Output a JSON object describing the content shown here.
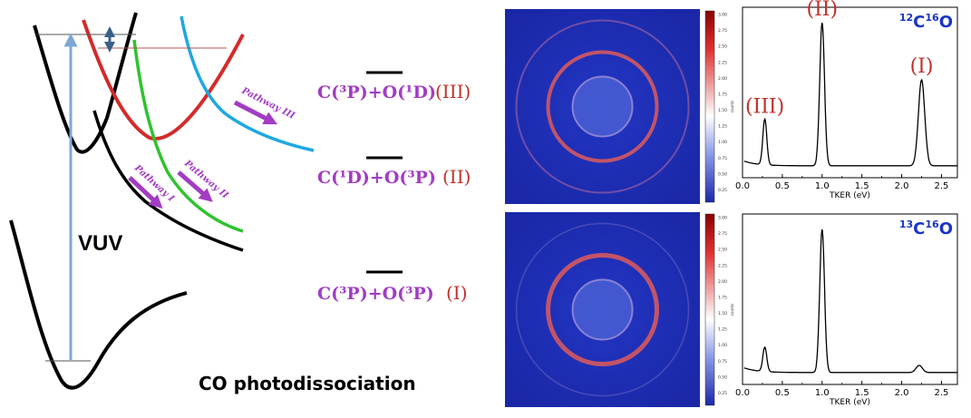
{
  "title": "CO photodissociation",
  "excitation_label": "VUV",
  "pathways": [
    {
      "label": "Pathway I"
    },
    {
      "label": "Pathway II"
    },
    {
      "label": "Pathway III"
    }
  ],
  "channels": [
    {
      "formula": "C(³P)+O(³P)",
      "numeral": "(I)"
    },
    {
      "formula": "C(¹D)+O(³P)",
      "numeral": "(II)"
    },
    {
      "formula": "C(³P)+O(¹D)",
      "numeral": "(III)"
    }
  ],
  "colors": {
    "curve_ground": "#000000",
    "curve_red": "#d42a2a",
    "curve_green": "#2fc22f",
    "curve_cyan": "#1fa8e0",
    "pathway_label": "#a23cc4",
    "channel_formula": "#a23cc4",
    "channel_numeral": "#c0302a",
    "vuv_arrow": "#7fa7d6",
    "double_arrow": "#3a5f8a",
    "isotope_label": "#1a35c8",
    "image_bg": "#1c2bb4",
    "ring": "#e05a5a"
  },
  "colorbar": {
    "ticks": [
      "3.00",
      "2.75",
      "2.50",
      "2.25",
      "2.00",
      "1.75",
      "1.50",
      "1.25",
      "1.00",
      "0.75",
      "0.50",
      "0.25"
    ],
    "label": "counts"
  },
  "chart_data": [
    {
      "type": "line",
      "isotope": {
        "a": "12",
        "b": "C",
        "c": "16",
        "d": "O"
      },
      "xlabel": "TKER (eV)",
      "xlim": [
        0,
        2.7
      ],
      "xticks": [
        "0.0",
        "0.5",
        "1.0",
        "1.5",
        "2.0",
        "2.5"
      ],
      "peaks": [
        {
          "x": 0.28,
          "height": 0.32,
          "label": "(III)"
        },
        {
          "x": 1.0,
          "height": 1.0,
          "label": "(II)"
        },
        {
          "x": 2.25,
          "height": 0.6,
          "label": "(I)"
        }
      ]
    },
    {
      "type": "line",
      "isotope": {
        "a": "13",
        "b": "C",
        "c": "16",
        "d": "O"
      },
      "xlabel": "TKER (eV)",
      "xlim": [
        0,
        2.7
      ],
      "xticks": [
        "0.0",
        "0.5",
        "1.0",
        "1.5",
        "2.0",
        "2.5"
      ],
      "peaks": [
        {
          "x": 0.28,
          "height": 0.17,
          "label": ""
        },
        {
          "x": 1.0,
          "height": 1.0,
          "label": ""
        },
        {
          "x": 2.22,
          "height": 0.05,
          "label": ""
        }
      ]
    }
  ]
}
